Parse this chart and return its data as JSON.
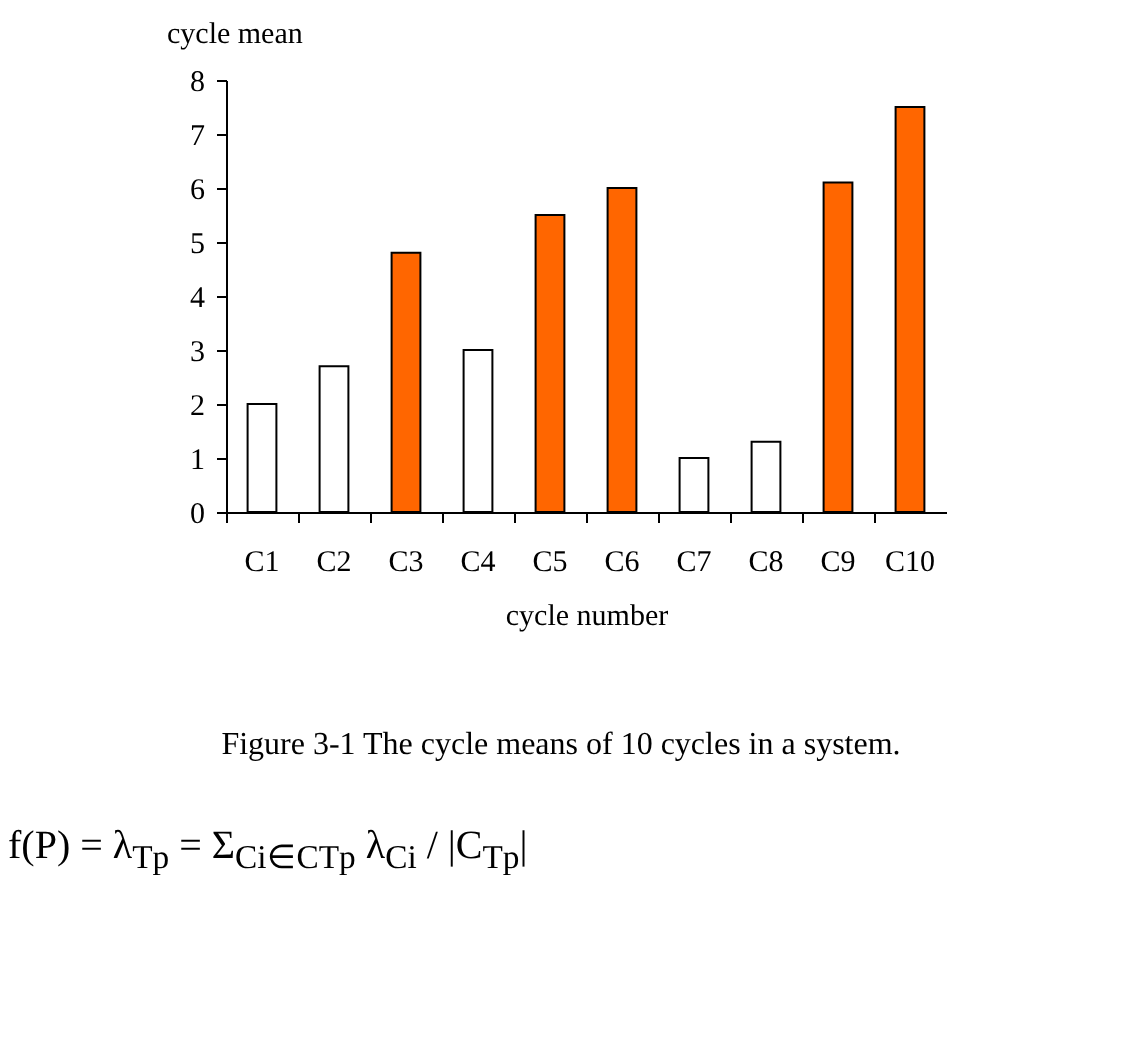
{
  "chart_data": {
    "type": "bar",
    "xlabel": "cycle number",
    "ylabel": "cycle mean",
    "categories": [
      "C1",
      "C2",
      "C3",
      "C4",
      "C5",
      "C6",
      "C7",
      "C8",
      "C9",
      "C10"
    ],
    "values": [
      2,
      2.7,
      4.8,
      3,
      5.5,
      6,
      1,
      1.3,
      6.1,
      7.5
    ],
    "colors": [
      "#ffffff",
      "#ffffff",
      "#ff6600",
      "#ffffff",
      "#ff6600",
      "#ff6600",
      "#ffffff",
      "#ffffff",
      "#ff6600",
      "#ff6600"
    ],
    "ylim": [
      0,
      8
    ],
    "yticks": [
      0,
      1,
      2,
      3,
      4,
      5,
      6,
      7,
      8
    ],
    "grid": false,
    "annotations": [
      "Figure 3-1 The cycle means of 10 cycles in a system.",
      "f(P) = λ$_{Tp}$ = Σ$_{Ci∈CTp}$ λ$_{Ci}$ / |C$_{Tp}$|"
    ]
  }
}
